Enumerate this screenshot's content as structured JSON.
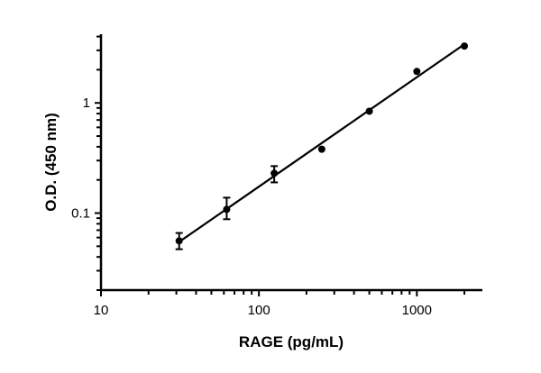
{
  "chart_data": {
    "type": "scatter",
    "title": "",
    "xlabel": "RAGE (pg/mL)",
    "ylabel": "O.D. (450 nm)",
    "xscale": "log",
    "yscale": "log",
    "xlim": [
      10,
      2600
    ],
    "ylim": [
      0.02,
      4.2
    ],
    "xticks": [
      {
        "value": 10,
        "label": "10"
      },
      {
        "value": 100,
        "label": "100"
      },
      {
        "value": 1000,
        "label": "1000"
      }
    ],
    "yticks": [
      {
        "value": 0.1,
        "label": "0.1"
      },
      {
        "value": 1,
        "label": "1"
      }
    ],
    "grid": false,
    "series": [
      {
        "x": [
          31.25,
          62.5,
          125,
          250,
          500,
          1000,
          2000
        ],
        "y": [
          0.056,
          0.108,
          0.23,
          0.38,
          0.84,
          1.93,
          3.28
        ],
        "err_low": [
          0.047,
          0.088,
          0.19,
          null,
          null,
          null,
          null
        ],
        "err_high": [
          0.066,
          0.138,
          0.267,
          null,
          null,
          null,
          null
        ],
        "fit_line": true
      }
    ],
    "colors": {
      "marks": "#000000"
    }
  }
}
